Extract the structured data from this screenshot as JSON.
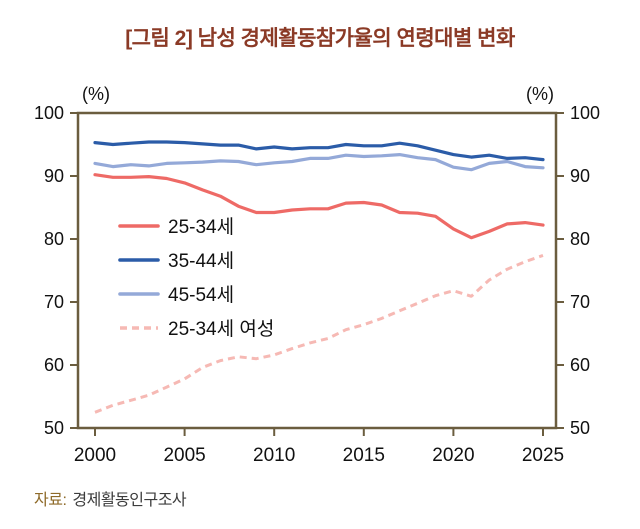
{
  "title": "[그림 2] 남성 경제활동참가율의 연령대별 변화",
  "source": {
    "label": "자료:",
    "value": "경제활동인구조사"
  },
  "colors": {
    "frame": "#6b5d3f",
    "title": "#8b3a26",
    "text": "#111111",
    "source_label": "#8f6b2a"
  },
  "chart_data": {
    "type": "line",
    "title": "[그림 2] 남성 경제활동참가율의 연령대별 변화",
    "unit_label": "(%)",
    "xlabel": "",
    "ylabel": "(%)",
    "ylim": [
      50,
      100
    ],
    "y_ticks": [
      50,
      60,
      70,
      80,
      90,
      100
    ],
    "x_ticks": [
      2000,
      2005,
      2010,
      2015,
      2020,
      2025
    ],
    "grid": false,
    "legend_position": "inside-upper-left",
    "x": [
      2000,
      2001,
      2002,
      2003,
      2004,
      2005,
      2006,
      2007,
      2008,
      2009,
      2010,
      2011,
      2012,
      2013,
      2014,
      2015,
      2016,
      2017,
      2018,
      2019,
      2020,
      2021,
      2022,
      2023,
      2024,
      2025
    ],
    "series": [
      {
        "name": "25-34세",
        "color": "#ee6a66",
        "dash": null,
        "values": [
          90.2,
          89.8,
          89.8,
          89.9,
          89.6,
          88.9,
          87.8,
          86.8,
          85.2,
          84.2,
          84.2,
          84.6,
          84.8,
          84.8,
          85.7,
          85.8,
          85.4,
          84.2,
          84.1,
          83.6,
          81.6,
          80.2,
          81.2,
          82.4,
          82.6,
          82.2
        ]
      },
      {
        "name": "35-44세",
        "color": "#2b5ca8",
        "dash": null,
        "values": [
          95.3,
          95.0,
          95.2,
          95.4,
          95.4,
          95.3,
          95.1,
          94.9,
          94.9,
          94.3,
          94.6,
          94.3,
          94.5,
          94.5,
          95.0,
          94.8,
          94.8,
          95.2,
          94.8,
          94.1,
          93.4,
          93.0,
          93.3,
          92.8,
          92.9,
          92.6
        ]
      },
      {
        "name": "45-54세",
        "color": "#94a9d8",
        "dash": null,
        "values": [
          92.0,
          91.5,
          91.8,
          91.6,
          92.0,
          92.1,
          92.2,
          92.4,
          92.3,
          91.8,
          92.1,
          92.3,
          92.8,
          92.8,
          93.3,
          93.1,
          93.2,
          93.4,
          92.9,
          92.6,
          91.4,
          91.0,
          92.0,
          92.3,
          91.5,
          91.3
        ]
      },
      {
        "name": "25-34세 여성",
        "color": "#f6b9b4",
        "dash": "7 5",
        "values": [
          52.5,
          53.6,
          54.4,
          55.2,
          56.5,
          57.8,
          59.6,
          60.7,
          61.3,
          61.0,
          61.6,
          62.6,
          63.5,
          64.2,
          65.6,
          66.4,
          67.4,
          68.6,
          69.8,
          71.0,
          71.8,
          70.9,
          73.5,
          75.2,
          76.4,
          77.4
        ]
      }
    ]
  }
}
